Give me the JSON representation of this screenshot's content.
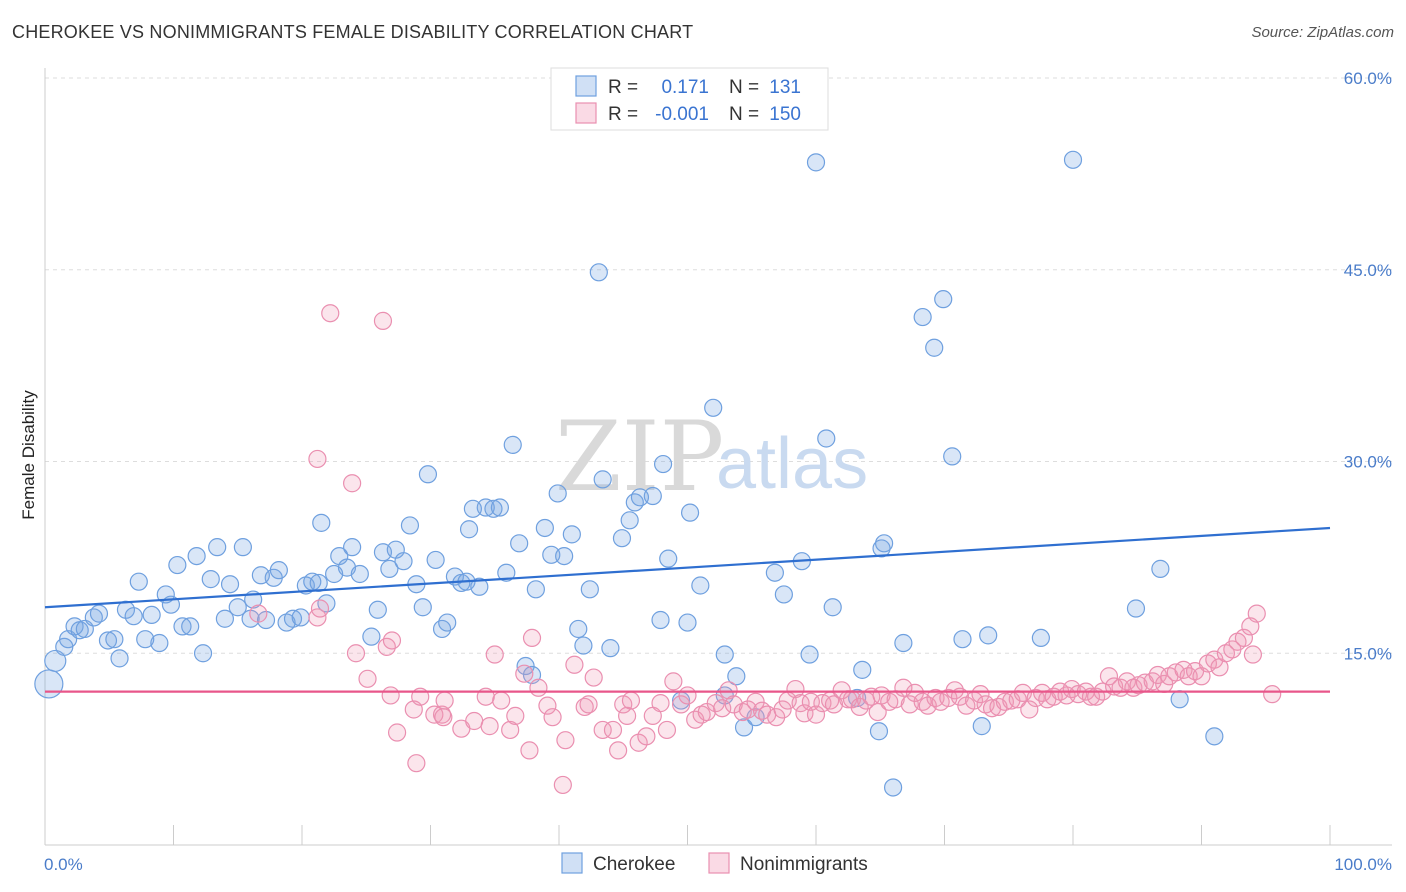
{
  "header": {
    "title": "CHEROKEE VS NONIMMIGRANTS FEMALE DISABILITY CORRELATION CHART",
    "source": "Source: ZipAtlas.com"
  },
  "watermark": {
    "zip": "ZIP",
    "atlas": "atlas"
  },
  "legend": {
    "rows": [
      {
        "r_label": "R =",
        "r_value": "0.171",
        "n_label": "N =",
        "n_value": "131"
      },
      {
        "r_label": "R =",
        "r_value": "-0.001",
        "n_label": "N =",
        "n_value": "150"
      }
    ]
  },
  "colors": {
    "cherokee": "#6fa0df",
    "cherokee_fill": "rgba(120,165,225,0.28)",
    "cherokee_line": "#2f6fd0",
    "nonimmigrants": "#ea8fb0",
    "nonimmigrants_fill": "rgba(240,150,180,0.25)",
    "nonimmigrants_line": "#e8568a",
    "axis_label": "#4a7cc9"
  },
  "chart_data": {
    "type": "scatter",
    "title": "CHEROKEE VS NONIMMIGRANTS FEMALE DISABILITY CORRELATION CHART",
    "xlabel": "",
    "ylabel": "Female Disability",
    "xlim": [
      0,
      100
    ],
    "ylim": [
      0,
      60
    ],
    "x_tick_labels": [
      "0.0%",
      "100.0%"
    ],
    "y_ticks": [
      15,
      30,
      45,
      60
    ],
    "y_tick_labels": [
      "15.0%",
      "30.0%",
      "45.0%",
      "60.0%"
    ],
    "grid": true,
    "legend_position": "top-center",
    "series": [
      {
        "name": "Cherokee",
        "trend": {
          "x": [
            0,
            100
          ],
          "y": [
            18.6,
            24.8
          ]
        },
        "points": [
          [
            0.3,
            12.6
          ],
          [
            0.8,
            14.4
          ],
          [
            1.5,
            15.5
          ],
          [
            1.8,
            16.1
          ],
          [
            2.3,
            17.1
          ],
          [
            2.7,
            16.8
          ],
          [
            3.1,
            16.9
          ],
          [
            3.8,
            17.8
          ],
          [
            4.2,
            18.1
          ],
          [
            4.9,
            16.0
          ],
          [
            5.4,
            16.1
          ],
          [
            5.8,
            14.6
          ],
          [
            6.3,
            18.4
          ],
          [
            6.9,
            17.9
          ],
          [
            7.3,
            20.6
          ],
          [
            7.8,
            16.1
          ],
          [
            8.3,
            18.0
          ],
          [
            8.9,
            15.8
          ],
          [
            9.4,
            19.6
          ],
          [
            9.8,
            18.8
          ],
          [
            10.3,
            21.9
          ],
          [
            10.7,
            17.1
          ],
          [
            11.3,
            17.1
          ],
          [
            11.8,
            22.6
          ],
          [
            12.3,
            15.0
          ],
          [
            12.9,
            20.8
          ],
          [
            13.4,
            23.3
          ],
          [
            14.0,
            17.7
          ],
          [
            14.4,
            20.4
          ],
          [
            15.0,
            18.6
          ],
          [
            15.4,
            23.3
          ],
          [
            16.0,
            17.7
          ],
          [
            16.2,
            19.2
          ],
          [
            16.8,
            21.1
          ],
          [
            17.2,
            17.6
          ],
          [
            17.8,
            20.9
          ],
          [
            18.2,
            21.5
          ],
          [
            18.8,
            17.4
          ],
          [
            19.3,
            17.7
          ],
          [
            19.9,
            17.8
          ],
          [
            20.3,
            20.3
          ],
          [
            20.8,
            20.6
          ],
          [
            21.3,
            20.5
          ],
          [
            21.9,
            18.9
          ],
          [
            22.5,
            21.2
          ],
          [
            22.9,
            22.6
          ],
          [
            23.5,
            21.7
          ],
          [
            23.9,
            23.3
          ],
          [
            24.5,
            21.2
          ],
          [
            25.4,
            16.3
          ],
          [
            25.9,
            18.4
          ],
          [
            26.3,
            22.9
          ],
          [
            26.8,
            21.6
          ],
          [
            27.3,
            23.1
          ],
          [
            27.9,
            22.2
          ],
          [
            28.4,
            25.0
          ],
          [
            28.9,
            20.4
          ],
          [
            29.4,
            18.6
          ],
          [
            29.8,
            29.0
          ],
          [
            30.4,
            22.3
          ],
          [
            30.9,
            16.9
          ],
          [
            31.3,
            17.4
          ],
          [
            31.9,
            21.0
          ],
          [
            32.4,
            20.5
          ],
          [
            32.8,
            20.6
          ],
          [
            33.0,
            24.7
          ],
          [
            33.3,
            26.3
          ],
          [
            33.8,
            20.2
          ],
          [
            34.3,
            26.4
          ],
          [
            34.9,
            26.3
          ],
          [
            35.4,
            26.4
          ],
          [
            35.9,
            21.3
          ],
          [
            36.4,
            31.3
          ],
          [
            36.9,
            23.6
          ],
          [
            37.4,
            14.0
          ],
          [
            37.9,
            13.3
          ],
          [
            38.2,
            20.0
          ],
          [
            38.9,
            24.8
          ],
          [
            39.4,
            22.7
          ],
          [
            39.9,
            27.5
          ],
          [
            40.4,
            22.6
          ],
          [
            41.0,
            24.3
          ],
          [
            41.5,
            16.9
          ],
          [
            41.9,
            15.6
          ],
          [
            42.4,
            20.0
          ],
          [
            43.1,
            44.8
          ],
          [
            43.4,
            28.6
          ],
          [
            44.0,
            15.4
          ],
          [
            44.9,
            24.0
          ],
          [
            45.5,
            25.4
          ],
          [
            45.9,
            26.8
          ],
          [
            46.3,
            27.2
          ],
          [
            47.3,
            27.3
          ],
          [
            47.9,
            17.6
          ],
          [
            48.1,
            29.8
          ],
          [
            48.5,
            22.4
          ],
          [
            49.5,
            11.3
          ],
          [
            50.0,
            17.4
          ],
          [
            50.2,
            26.0
          ],
          [
            51.0,
            20.3
          ],
          [
            52.0,
            34.2
          ],
          [
            52.9,
            14.9
          ],
          [
            52.9,
            11.7
          ],
          [
            53.8,
            13.2
          ],
          [
            54.4,
            9.2
          ],
          [
            55.3,
            10.0
          ],
          [
            56.8,
            21.3
          ],
          [
            57.5,
            19.6
          ],
          [
            58.9,
            22.2
          ],
          [
            59.5,
            14.9
          ],
          [
            60.8,
            31.8
          ],
          [
            61.3,
            18.6
          ],
          [
            63.2,
            11.5
          ],
          [
            63.6,
            13.7
          ],
          [
            64.9,
            8.9
          ],
          [
            65.1,
            23.2
          ],
          [
            65.3,
            23.6
          ],
          [
            66.0,
            4.5
          ],
          [
            66.8,
            15.8
          ],
          [
            68.3,
            41.3
          ],
          [
            69.2,
            38.9
          ],
          [
            69.9,
            42.7
          ],
          [
            70.6,
            30.4
          ],
          [
            71.4,
            16.1
          ],
          [
            72.9,
            9.3
          ],
          [
            73.4,
            16.4
          ],
          [
            77.5,
            16.2
          ],
          [
            80.0,
            53.6
          ],
          [
            84.9,
            18.5
          ],
          [
            86.8,
            21.6
          ],
          [
            88.3,
            11.4
          ],
          [
            91.0,
            8.5
          ],
          [
            60.0,
            53.4
          ],
          [
            21.5,
            25.2
          ]
        ]
      },
      {
        "name": "Nonimmigrants",
        "trend": {
          "x": [
            0,
            100
          ],
          "y": [
            12.0,
            12.0
          ]
        },
        "points": [
          [
            16.6,
            18.1
          ],
          [
            21.2,
            17.8
          ],
          [
            22.2,
            41.6
          ],
          [
            26.3,
            41.0
          ],
          [
            21.2,
            30.2
          ],
          [
            23.9,
            28.3
          ],
          [
            21.4,
            18.5
          ],
          [
            24.2,
            15.0
          ],
          [
            25.1,
            13.0
          ],
          [
            26.6,
            15.5
          ],
          [
            27.0,
            16.0
          ],
          [
            26.9,
            11.7
          ],
          [
            27.4,
            8.8
          ],
          [
            28.7,
            10.6
          ],
          [
            28.9,
            6.4
          ],
          [
            29.2,
            11.6
          ],
          [
            30.3,
            10.2
          ],
          [
            30.9,
            10.2
          ],
          [
            31.0,
            10.0
          ],
          [
            31.1,
            11.3
          ],
          [
            32.4,
            9.1
          ],
          [
            33.4,
            9.7
          ],
          [
            34.3,
            11.6
          ],
          [
            34.6,
            9.3
          ],
          [
            35.0,
            14.9
          ],
          [
            35.5,
            11.3
          ],
          [
            36.2,
            9.0
          ],
          [
            36.6,
            10.1
          ],
          [
            37.3,
            13.4
          ],
          [
            37.7,
            7.4
          ],
          [
            37.9,
            16.2
          ],
          [
            38.4,
            12.3
          ],
          [
            39.1,
            10.9
          ],
          [
            39.5,
            10.0
          ],
          [
            40.3,
            4.7
          ],
          [
            40.5,
            8.2
          ],
          [
            41.2,
            14.1
          ],
          [
            42.0,
            10.8
          ],
          [
            42.3,
            11.0
          ],
          [
            42.7,
            13.1
          ],
          [
            43.4,
            9.0
          ],
          [
            44.2,
            9.0
          ],
          [
            44.6,
            7.4
          ],
          [
            45.0,
            11.0
          ],
          [
            45.3,
            10.1
          ],
          [
            45.6,
            11.3
          ],
          [
            46.2,
            8.0
          ],
          [
            46.8,
            8.5
          ],
          [
            47.3,
            10.1
          ],
          [
            47.9,
            11.1
          ],
          [
            48.4,
            9.0
          ],
          [
            48.9,
            12.8
          ],
          [
            49.5,
            11.0
          ],
          [
            50.0,
            11.7
          ],
          [
            50.6,
            9.8
          ],
          [
            51.1,
            10.2
          ],
          [
            51.5,
            10.4
          ],
          [
            52.2,
            11.1
          ],
          [
            52.7,
            10.7
          ],
          [
            53.2,
            12.1
          ],
          [
            53.6,
            11.0
          ],
          [
            54.3,
            10.4
          ],
          [
            54.7,
            10.6
          ],
          [
            55.3,
            11.2
          ],
          [
            55.8,
            10.5
          ],
          [
            56.2,
            10.2
          ],
          [
            56.9,
            10.0
          ],
          [
            57.4,
            10.6
          ],
          [
            57.8,
            11.3
          ],
          [
            58.4,
            12.2
          ],
          [
            58.8,
            11.1
          ],
          [
            59.1,
            10.3
          ],
          [
            59.6,
            11.2
          ],
          [
            60.0,
            10.2
          ],
          [
            60.5,
            11.1
          ],
          [
            61.1,
            11.3
          ],
          [
            61.4,
            11.0
          ],
          [
            62.0,
            12.1
          ],
          [
            62.5,
            11.4
          ],
          [
            62.8,
            11.4
          ],
          [
            63.4,
            10.8
          ],
          [
            63.9,
            11.3
          ],
          [
            64.3,
            11.6
          ],
          [
            64.8,
            10.4
          ],
          [
            65.1,
            11.7
          ],
          [
            65.7,
            11.2
          ],
          [
            66.2,
            11.4
          ],
          [
            66.8,
            12.3
          ],
          [
            67.3,
            11.0
          ],
          [
            67.7,
            11.9
          ],
          [
            68.3,
            11.2
          ],
          [
            68.7,
            10.9
          ],
          [
            69.3,
            11.5
          ],
          [
            69.7,
            11.2
          ],
          [
            70.3,
            11.5
          ],
          [
            70.8,
            12.1
          ],
          [
            71.2,
            11.6
          ],
          [
            71.7,
            10.9
          ],
          [
            72.3,
            11.3
          ],
          [
            72.8,
            11.8
          ],
          [
            73.2,
            11.0
          ],
          [
            73.7,
            10.7
          ],
          [
            74.2,
            10.8
          ],
          [
            74.7,
            11.2
          ],
          [
            75.2,
            11.3
          ],
          [
            75.7,
            11.4
          ],
          [
            76.1,
            11.9
          ],
          [
            76.6,
            10.6
          ],
          [
            77.1,
            11.5
          ],
          [
            77.6,
            11.9
          ],
          [
            78.0,
            11.4
          ],
          [
            78.5,
            11.6
          ],
          [
            79.0,
            12.0
          ],
          [
            79.5,
            11.7
          ],
          [
            79.9,
            12.2
          ],
          [
            80.4,
            11.8
          ],
          [
            81.0,
            12.0
          ],
          [
            81.4,
            11.6
          ],
          [
            81.8,
            11.6
          ],
          [
            82.3,
            12.0
          ],
          [
            82.8,
            13.2
          ],
          [
            83.2,
            12.4
          ],
          [
            83.7,
            12.3
          ],
          [
            84.2,
            12.8
          ],
          [
            84.7,
            12.3
          ],
          [
            85.1,
            12.5
          ],
          [
            85.6,
            12.7
          ],
          [
            86.2,
            12.8
          ],
          [
            86.6,
            13.3
          ],
          [
            87.1,
            12.6
          ],
          [
            87.5,
            13.2
          ],
          [
            88.0,
            13.5
          ],
          [
            88.6,
            13.7
          ],
          [
            89.0,
            13.2
          ],
          [
            89.5,
            13.6
          ],
          [
            90.0,
            13.2
          ],
          [
            90.5,
            14.2
          ],
          [
            91.0,
            14.5
          ],
          [
            91.4,
            13.9
          ],
          [
            91.9,
            15.0
          ],
          [
            92.4,
            15.3
          ],
          [
            92.8,
            15.9
          ],
          [
            93.3,
            16.2
          ],
          [
            93.8,
            17.1
          ],
          [
            94.3,
            18.1
          ],
          [
            94.0,
            14.9
          ],
          [
            95.5,
            11.8
          ]
        ]
      }
    ]
  },
  "bottom_legend": [
    {
      "label": "Cherokee"
    },
    {
      "label": "Nonimmigrants"
    }
  ]
}
